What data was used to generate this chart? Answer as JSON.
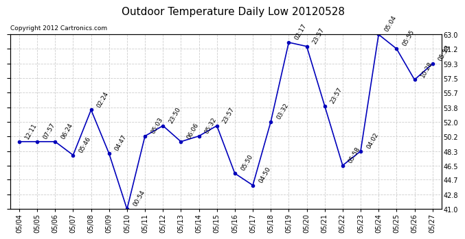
{
  "title": "Outdoor Temperature Daily Low 20120528",
  "copyright": "Copyright 2012 Cartronics.com",
  "x_labels": [
    "05/04",
    "05/05",
    "05/06",
    "05/07",
    "05/08",
    "05/09",
    "05/10",
    "05/11",
    "05/12",
    "05/13",
    "05/14",
    "05/15",
    "05/16",
    "05/17",
    "05/18",
    "05/19",
    "05/20",
    "05/21",
    "05/22",
    "05/23",
    "05/24",
    "05/25",
    "05/26",
    "05/27"
  ],
  "y_values": [
    49.5,
    49.5,
    49.5,
    47.8,
    53.5,
    48.0,
    41.0,
    50.2,
    51.5,
    49.5,
    50.2,
    51.5,
    45.5,
    44.0,
    52.0,
    62.0,
    61.5,
    54.0,
    46.5,
    48.3,
    63.0,
    61.2,
    57.3,
    59.3
  ],
  "point_labels": [
    "12:11",
    "07:57",
    "06:24",
    "05:46",
    "02:24",
    "04:47",
    "00:54",
    "05:03",
    "23:50",
    "06:06",
    "05:32",
    "23:57",
    "05:50",
    "04:50",
    "03:32",
    "02:17",
    "23:57",
    "23:57",
    "05:58",
    "04:02",
    "05:04",
    "05:55",
    "10:28",
    "05:53"
  ],
  "ylim": [
    41.0,
    63.0
  ],
  "yticks": [
    41.0,
    42.8,
    44.7,
    46.5,
    48.3,
    50.2,
    52.0,
    53.8,
    55.7,
    57.5,
    59.3,
    61.2,
    63.0
  ],
  "line_color": "#0000bb",
  "marker_color": "#0000bb",
  "bg_color": "#ffffff",
  "grid_color": "#cccccc",
  "title_fontsize": 11,
  "label_fontsize": 6.5,
  "tick_fontsize": 7,
  "copyright_fontsize": 6.5
}
